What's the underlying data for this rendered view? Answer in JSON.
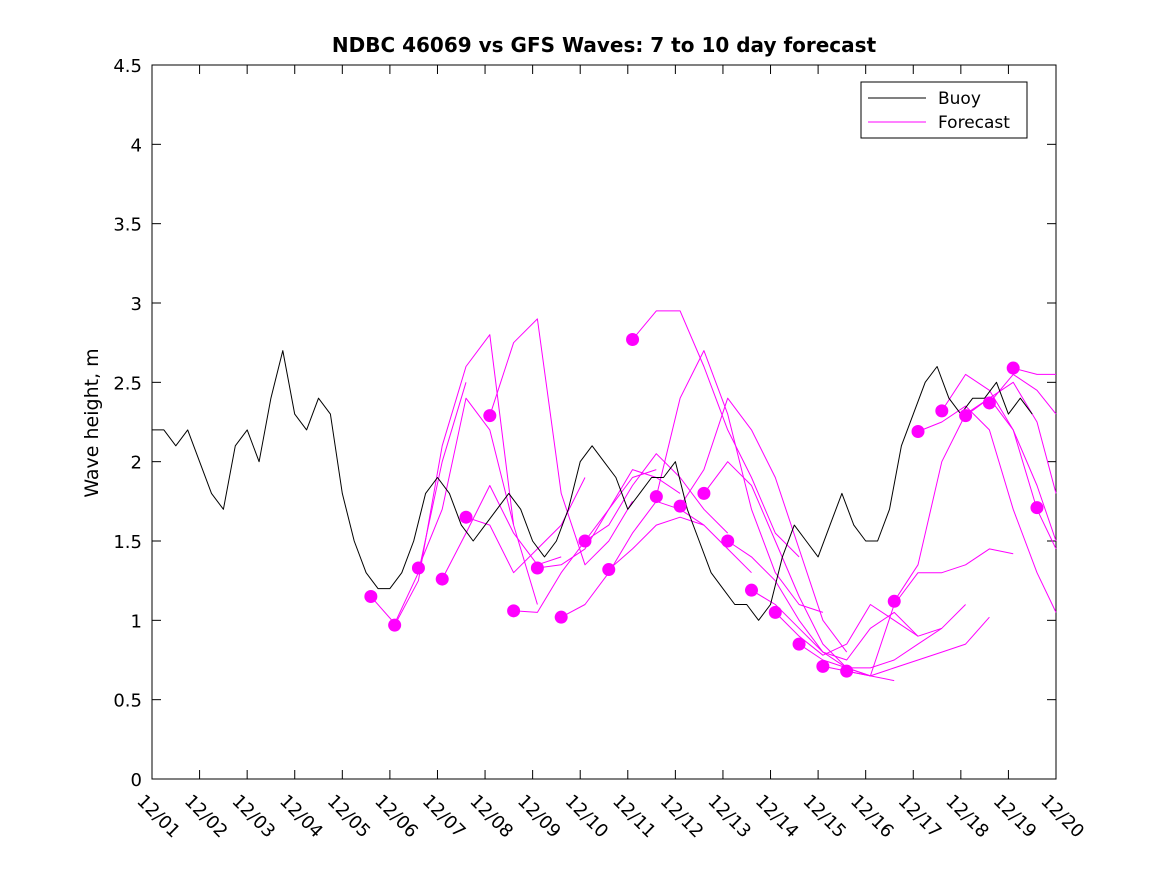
{
  "chart_data": {
    "type": "line",
    "title": "NDBC 46069 vs GFS Waves: 7 to 10 day forecast",
    "xlabel": "",
    "ylabel": "Wave height, m",
    "xlim": [
      0,
      19
    ],
    "ylim": [
      0,
      4.5
    ],
    "x_ticks": [
      0,
      1,
      2,
      3,
      4,
      5,
      6,
      7,
      8,
      9,
      10,
      11,
      12,
      13,
      14,
      15,
      16,
      17,
      18,
      19
    ],
    "x_tick_labels": [
      "12/01",
      "12/02",
      "12/03",
      "12/04",
      "12/05",
      "12/06",
      "12/07",
      "12/08",
      "12/09",
      "12/10",
      "12/11",
      "12/12",
      "12/13",
      "12/14",
      "12/15",
      "12/16",
      "12/17",
      "12/18",
      "12/19",
      "12/20"
    ],
    "y_ticks": [
      0,
      0.5,
      1,
      1.5,
      2,
      2.5,
      3,
      3.5,
      4,
      4.5
    ],
    "y_tick_labels": [
      "0",
      "0.5",
      "1",
      "1.5",
      "2",
      "2.5",
      "3",
      "3.5",
      "4",
      "4.5"
    ],
    "legend": {
      "position": "top-right",
      "entries": [
        {
          "label": "Buoy",
          "color": "#000000"
        },
        {
          "label": "Forecast",
          "color": "#ff00ff"
        }
      ]
    },
    "series": [
      {
        "name": "Buoy",
        "color": "#000000",
        "x": [
          0,
          0.25,
          0.5,
          0.75,
          1,
          1.25,
          1.5,
          1.75,
          2,
          2.25,
          2.5,
          2.75,
          3,
          3.25,
          3.5,
          3.75,
          4,
          4.25,
          4.5,
          4.75,
          5,
          5.25,
          5.5,
          5.75,
          6,
          6.25,
          6.5,
          6.75,
          7,
          7.25,
          7.5,
          7.75,
          8,
          8.25,
          8.5,
          8.75,
          9,
          9.25,
          9.5,
          9.75,
          10,
          10.25,
          10.5,
          10.75,
          11,
          11.25,
          11.5,
          11.75,
          12,
          12.25,
          12.5,
          12.75,
          13,
          13.25,
          13.5,
          13.75,
          14,
          14.25,
          14.5,
          14.75,
          15,
          15.25,
          15.5,
          15.75,
          16,
          16.25,
          16.5,
          16.75,
          17,
          17.25,
          17.5,
          17.75,
          18,
          18.25,
          18.5
        ],
        "values": [
          2.2,
          2.2,
          2.1,
          2.2,
          2.0,
          1.8,
          1.7,
          2.1,
          2.2,
          2.0,
          2.4,
          2.7,
          2.3,
          2.2,
          2.4,
          2.3,
          1.8,
          1.5,
          1.3,
          1.2,
          1.2,
          1.3,
          1.5,
          1.8,
          1.9,
          1.8,
          1.6,
          1.5,
          1.6,
          1.7,
          1.8,
          1.7,
          1.5,
          1.4,
          1.5,
          1.7,
          2.0,
          2.1,
          2.0,
          1.9,
          1.7,
          1.8,
          1.9,
          1.9,
          2.0,
          1.7,
          1.5,
          1.3,
          1.2,
          1.1,
          1.1,
          1.0,
          1.1,
          1.4,
          1.6,
          1.5,
          1.4,
          1.6,
          1.8,
          1.6,
          1.5,
          1.5,
          1.7,
          2.1,
          2.3,
          2.5,
          2.6,
          2.4,
          2.3,
          2.4,
          2.4,
          2.5,
          2.3,
          2.4,
          2.3
        ]
      },
      {
        "name": "Forecast",
        "color": "#ff00ff",
        "x": [
          4.6,
          5.1,
          5.6,
          6.1,
          6.6
        ],
        "values": [
          1.15,
          0.98,
          1.3,
          2.0,
          2.5
        ]
      },
      {
        "name": "Forecast",
        "color": "#ff00ff",
        "x": [
          5.1,
          5.6,
          6.1,
          6.6,
          7.1,
          7.6
        ],
        "values": [
          0.97,
          1.25,
          2.1,
          2.6,
          2.8,
          1.6
        ]
      },
      {
        "name": "Forecast",
        "color": "#ff00ff",
        "x": [
          5.6,
          6.1,
          6.6,
          7.1,
          7.6,
          8.1
        ],
        "values": [
          1.33,
          1.7,
          2.4,
          2.2,
          1.6,
          1.1
        ]
      },
      {
        "name": "Forecast",
        "color": "#ff00ff",
        "x": [
          6.1,
          6.6,
          7.1,
          7.6,
          8.1,
          8.6
        ],
        "values": [
          1.26,
          1.55,
          1.85,
          1.55,
          1.35,
          1.4
        ]
      },
      {
        "name": "Forecast",
        "color": "#ff00ff",
        "x": [
          6.6,
          7.1,
          7.6,
          8.1,
          8.6,
          9.1
        ],
        "values": [
          1.65,
          1.6,
          1.3,
          1.45,
          1.6,
          1.9
        ]
      },
      {
        "name": "Forecast",
        "color": "#ff00ff",
        "x": [
          7.1,
          7.6,
          8.1,
          8.6,
          9.1,
          9.6,
          10.1
        ],
        "values": [
          2.29,
          2.75,
          2.9,
          1.8,
          1.35,
          1.5,
          1.75
        ]
      },
      {
        "name": "Forecast",
        "color": "#ff00ff",
        "x": [
          7.6,
          8.1,
          8.6,
          9.1,
          9.6,
          10.1,
          10.6
        ],
        "values": [
          1.06,
          1.05,
          1.3,
          1.5,
          1.7,
          1.9,
          1.95
        ]
      },
      {
        "name": "Forecast",
        "color": "#ff00ff",
        "x": [
          8.1,
          8.6,
          9.1,
          9.6,
          10.1,
          10.6,
          11.1
        ],
        "values": [
          1.33,
          1.35,
          1.45,
          1.7,
          1.95,
          1.9,
          1.8
        ]
      },
      {
        "name": "Forecast",
        "color": "#ff00ff",
        "x": [
          8.6,
          9.1,
          9.6,
          10.1,
          10.6,
          11.1,
          11.6
        ],
        "values": [
          1.02,
          1.1,
          1.3,
          1.55,
          1.75,
          1.7,
          1.6
        ]
      },
      {
        "name": "Forecast",
        "color": "#ff00ff",
        "x": [
          9.1,
          9.6,
          10.1,
          10.6,
          11.1,
          11.6,
          12.1
        ],
        "values": [
          1.5,
          1.6,
          1.85,
          2.05,
          1.9,
          1.7,
          1.55
        ]
      },
      {
        "name": "Forecast",
        "color": "#ff00ff",
        "x": [
          9.6,
          10.1,
          10.6,
          11.1,
          11.6,
          12.1,
          12.6
        ],
        "values": [
          1.32,
          1.45,
          1.6,
          1.65,
          1.6,
          1.45,
          1.3
        ]
      },
      {
        "name": "Forecast",
        "color": "#ff00ff",
        "x": [
          10.1,
          10.6,
          11.1,
          11.6,
          12.1,
          12.6,
          13.1,
          13.6
        ],
        "values": [
          2.77,
          2.95,
          2.95,
          2.6,
          2.2,
          1.9,
          1.55,
          1.4
        ]
      },
      {
        "name": "Forecast",
        "color": "#ff00ff",
        "x": [
          10.6,
          11.1,
          11.6,
          12.1,
          12.6,
          13.1,
          13.6,
          14.1
        ],
        "values": [
          1.78,
          2.4,
          2.7,
          2.3,
          1.7,
          1.3,
          1.1,
          1.05
        ]
      },
      {
        "name": "Forecast",
        "color": "#ff00ff",
        "x": [
          11.1,
          11.6,
          12.1,
          12.6,
          13.1,
          13.6,
          14.1,
          14.6
        ],
        "values": [
          1.72,
          1.95,
          2.4,
          2.2,
          1.9,
          1.45,
          1.0,
          0.8
        ]
      },
      {
        "name": "Forecast",
        "color": "#ff00ff",
        "x": [
          11.6,
          12.1,
          12.6,
          13.1,
          13.6,
          14.1,
          14.6,
          15.1
        ],
        "values": [
          1.8,
          2.0,
          1.85,
          1.5,
          1.15,
          0.85,
          0.7,
          0.65
        ]
      },
      {
        "name": "Forecast",
        "color": "#ff00ff",
        "x": [
          12.1,
          12.6,
          13.1,
          13.6,
          14.1,
          14.6,
          15.1,
          15.6
        ],
        "values": [
          1.5,
          1.4,
          1.25,
          1.0,
          0.8,
          0.7,
          0.65,
          0.62
        ]
      },
      {
        "name": "Forecast",
        "color": "#ff00ff",
        "x": [
          12.6,
          13.1,
          13.6,
          14.1,
          14.6,
          15.1,
          15.6,
          16.1
        ],
        "values": [
          1.19,
          1.1,
          0.95,
          0.8,
          0.75,
          0.95,
          1.05,
          0.9
        ]
      },
      {
        "name": "Forecast",
        "color": "#ff00ff",
        "x": [
          13.1,
          13.6,
          14.1,
          14.6,
          15.1,
          15.6,
          16.1,
          16.6
        ],
        "values": [
          1.05,
          0.9,
          0.78,
          0.85,
          1.1,
          1.0,
          0.9,
          0.95
        ]
      },
      {
        "name": "Forecast",
        "color": "#ff00ff",
        "x": [
          13.6,
          14.1,
          14.6,
          15.1,
          15.6,
          16.1,
          16.6,
          17.1
        ],
        "values": [
          0.85,
          0.75,
          0.7,
          0.7,
          0.75,
          0.85,
          0.95,
          1.1
        ]
      },
      {
        "name": "Forecast",
        "color": "#ff00ff",
        "x": [
          14.1,
          14.6,
          15.1,
          15.6,
          16.1,
          16.6,
          17.1,
          17.6
        ],
        "values": [
          0.71,
          0.68,
          0.65,
          0.7,
          0.75,
          0.8,
          0.85,
          1.02
        ]
      },
      {
        "name": "Forecast",
        "color": "#ff00ff",
        "x": [
          14.6,
          15.1,
          15.6,
          16.1,
          16.6,
          17.1,
          17.6,
          18.1
        ],
        "values": [
          0.68,
          0.65,
          1.1,
          1.3,
          1.3,
          1.35,
          1.45,
          1.42
        ]
      },
      {
        "name": "Forecast",
        "color": "#ff00ff",
        "x": [
          15.6,
          16.1,
          16.6,
          17.1,
          17.6,
          18.1,
          18.6,
          19.0
        ],
        "values": [
          1.12,
          1.35,
          2.0,
          2.3,
          2.4,
          2.2,
          1.7,
          1.45
        ]
      },
      {
        "name": "Forecast",
        "color": "#ff00ff",
        "x": [
          16.1,
          16.6,
          17.1,
          17.6,
          18.1,
          18.6,
          19.0
        ],
        "values": [
          2.19,
          2.25,
          2.35,
          2.2,
          1.7,
          1.3,
          1.05
        ]
      },
      {
        "name": "Forecast",
        "color": "#ff00ff",
        "x": [
          16.6,
          17.1,
          17.6,
          18.1,
          18.6,
          19.0
        ],
        "values": [
          2.32,
          2.55,
          2.45,
          2.2,
          1.85,
          1.5
        ]
      },
      {
        "name": "Forecast",
        "color": "#ff00ff",
        "x": [
          17.1,
          17.6,
          18.1,
          18.6,
          19.0
        ],
        "values": [
          2.29,
          2.4,
          2.5,
          2.25,
          1.8
        ]
      },
      {
        "name": "Forecast",
        "color": "#ff00ff",
        "x": [
          17.6,
          18.1,
          18.6,
          19.0
        ],
        "values": [
          2.37,
          2.55,
          2.45,
          2.3
        ]
      },
      {
        "name": "Forecast",
        "color": "#ff00ff",
        "x": [
          18.1,
          18.6,
          19.0
        ],
        "values": [
          2.59,
          2.55,
          2.55
        ]
      }
    ],
    "markers": {
      "name": "Forecast initial points",
      "color": "#ff00ff",
      "x": [
        4.6,
        5.1,
        5.6,
        6.1,
        6.6,
        7.1,
        7.6,
        8.1,
        8.6,
        9.1,
        9.6,
        10.1,
        10.6,
        11.1,
        11.6,
        12.1,
        12.6,
        13.1,
        13.6,
        14.1,
        14.6,
        15.6,
        16.1,
        16.6,
        17.1,
        17.6,
        18.1,
        18.6
      ],
      "values": [
        1.15,
        0.97,
        1.33,
        1.26,
        1.65,
        2.29,
        1.06,
        1.33,
        1.02,
        1.5,
        1.32,
        2.77,
        1.78,
        1.72,
        1.8,
        1.5,
        1.19,
        1.05,
        0.85,
        0.71,
        0.68,
        1.12,
        2.19,
        2.32,
        2.29,
        2.37,
        2.59,
        1.71
      ]
    }
  }
}
